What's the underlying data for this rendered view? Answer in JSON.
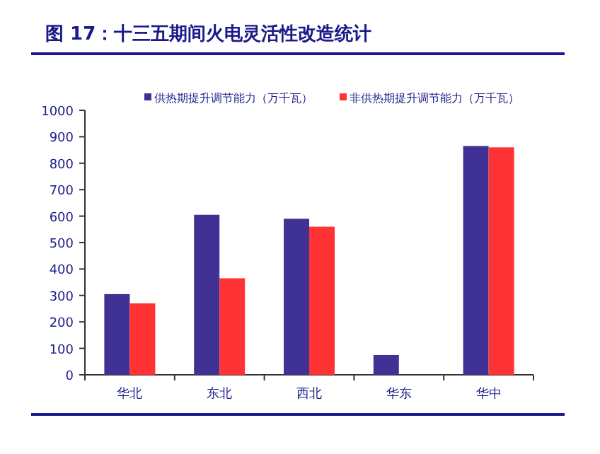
{
  "chart_data": {
    "type": "bar",
    "title": "图 17：十三五期间火电灵活性改造统计",
    "categories": [
      "华北",
      "东北",
      "西北",
      "华东",
      "华中"
    ],
    "series": [
      {
        "name": "供热期提升调节能力（万千瓦）",
        "color": "#403294",
        "values": [
          305,
          605,
          590,
          75,
          865
        ]
      },
      {
        "name": "非供热期提升调节能力（万千瓦）",
        "color": "#ff3333",
        "values": [
          270,
          365,
          560,
          null,
          860
        ]
      }
    ],
    "ylim": [
      0,
      1000
    ],
    "yticks": [
      0,
      100,
      200,
      300,
      400,
      500,
      600,
      700,
      800,
      900,
      1000
    ],
    "grid": false,
    "legend": "top"
  }
}
